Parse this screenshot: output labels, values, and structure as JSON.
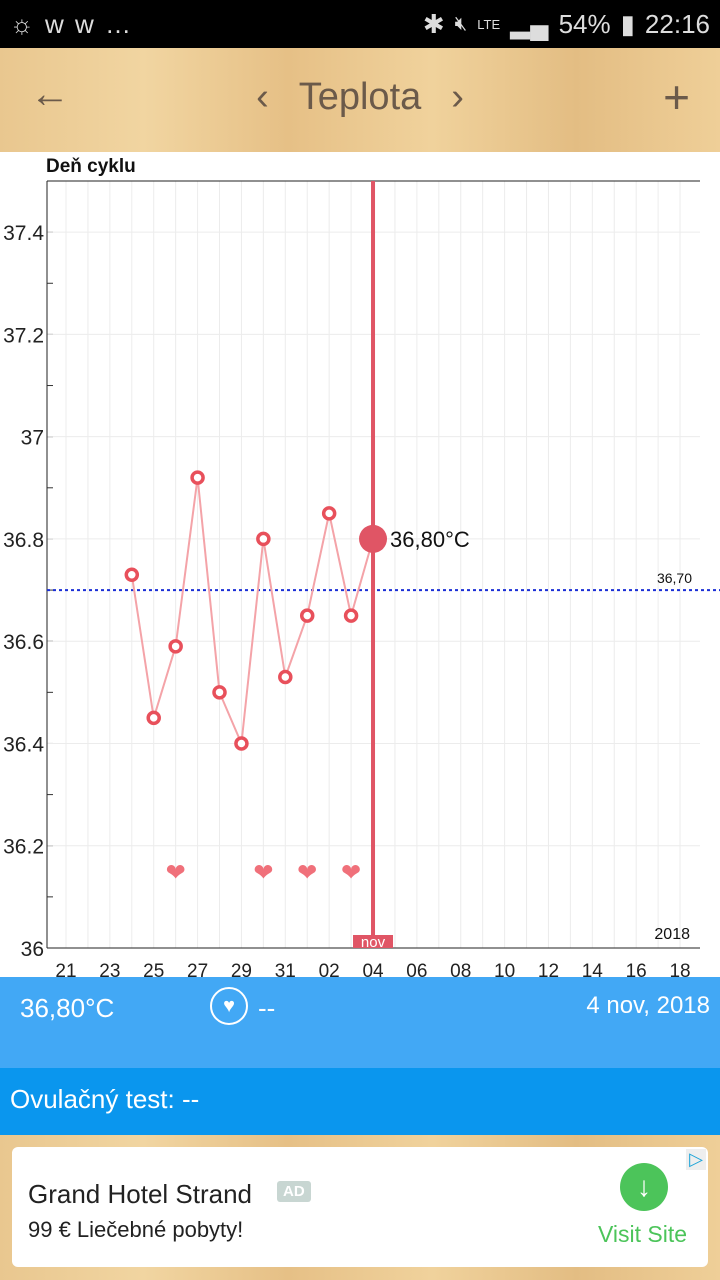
{
  "status_bar": {
    "left_icons": "☼ w w …",
    "battery": "54%",
    "time": "22:16",
    "network": "LTE"
  },
  "header": {
    "title": "Teplota",
    "back_icon": "arrow-left-icon",
    "add_icon": "plus-icon"
  },
  "chart_data": {
    "type": "line",
    "title": "Deň cyklu",
    "ylim": [
      36,
      37.5
    ],
    "y_ticks": [
      "36",
      "36.2",
      "36.4",
      "36.6",
      "36.8",
      "37",
      "37.2",
      "37.4"
    ],
    "x_tick_labels": [
      "21",
      "23",
      "25",
      "27",
      "29",
      "31",
      "02",
      "04",
      "06",
      "08",
      "10",
      "12",
      "14",
      "16",
      "18"
    ],
    "x": [
      "24",
      "25",
      "26",
      "27",
      "28",
      "29",
      "30",
      "31",
      "01",
      "02",
      "03",
      "04"
    ],
    "values": [
      36.73,
      36.45,
      36.59,
      36.92,
      36.5,
      36.4,
      36.8,
      36.53,
      36.65,
      36.85,
      36.65,
      36.8
    ],
    "hearts_on": [
      "26",
      "30",
      "01",
      "03"
    ],
    "coverline": 36.7,
    "coverline_label": "36,70",
    "selected_label": "36,80°C",
    "month_marker": "nov",
    "year_label": "2018",
    "colors": {
      "line": "#f4a3a8",
      "point": "#e8505b",
      "selected": "#e05565",
      "coverline": "#1a2fd6"
    }
  },
  "info": {
    "temperature": "36,80°C",
    "heart_value": "--",
    "date": "4 nov, 2018"
  },
  "ovulation": {
    "label": "Ovulačný test:",
    "value": "--"
  },
  "ad": {
    "title": "Grand Hotel Strand",
    "badge": "AD",
    "subtitle": "99 € Liečebné pobyty!",
    "cta": "Visit Site"
  }
}
